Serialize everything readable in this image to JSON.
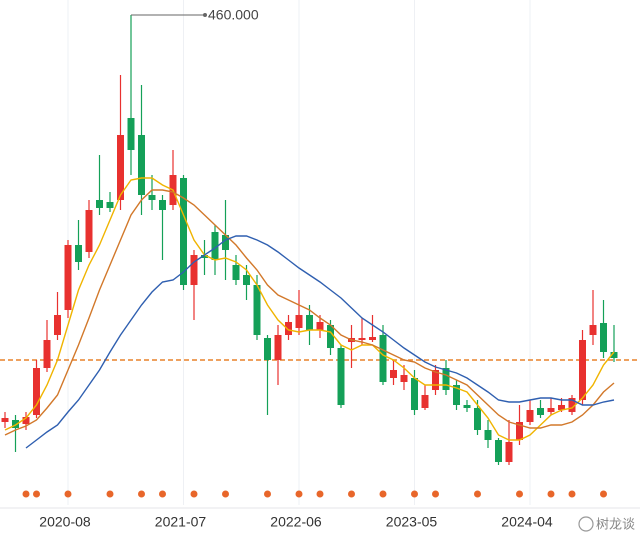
{
  "chart_data": {
    "type": "candlestick",
    "categories": [
      null,
      null,
      null,
      null,
      null,
      null,
      "2020-08",
      null,
      null,
      null,
      null,
      null,
      null,
      null,
      null,
      null,
      null,
      "2021-07",
      null,
      null,
      null,
      null,
      null,
      null,
      null,
      null,
      null,
      null,
      "2022-06",
      null,
      null,
      null,
      null,
      null,
      null,
      null,
      null,
      null,
      null,
      "2023-05",
      null,
      null,
      null,
      null,
      null,
      null,
      null,
      null,
      null,
      null,
      "2024-04",
      null,
      null,
      null,
      null,
      null,
      null,
      null,
      null
    ],
    "open": [
      53,
      55,
      51,
      60,
      107,
      140,
      165,
      230,
      223,
      275,
      273,
      275,
      357,
      340,
      280,
      275,
      270,
      297,
      190,
      220,
      243,
      240,
      210,
      200,
      190,
      137,
      115,
      140,
      147,
      160,
      145,
      150,
      127,
      133,
      135,
      135,
      140,
      97,
      93,
      97,
      67,
      85,
      107,
      90,
      70,
      67,
      45,
      35,
      13,
      35,
      53,
      67,
      63,
      65,
      63,
      75,
      140,
      152,
      123
    ],
    "high": [
      63,
      60,
      63,
      115,
      155,
      183,
      235,
      255,
      275,
      320,
      283,
      400,
      460,
      390,
      300,
      280,
      325,
      300,
      225,
      235,
      250,
      275,
      220,
      210,
      200,
      140,
      150,
      160,
      185,
      170,
      160,
      155,
      130,
      150,
      157,
      160,
      150,
      115,
      110,
      105,
      90,
      110,
      115,
      95,
      75,
      75,
      55,
      37,
      55,
      70,
      75,
      75,
      77,
      77,
      80,
      145,
      185,
      175,
      150
    ],
    "low": [
      47,
      23,
      45,
      57,
      103,
      135,
      157,
      205,
      217,
      260,
      263,
      265,
      300,
      260,
      265,
      215,
      265,
      185,
      155,
      200,
      200,
      195,
      190,
      175,
      135,
      60,
      90,
      135,
      140,
      130,
      137,
      120,
      67,
      107,
      130,
      133,
      90,
      90,
      85,
      60,
      65,
      80,
      80,
      65,
      63,
      40,
      27,
      10,
      10,
      30,
      50,
      57,
      60,
      63,
      60,
      70,
      130,
      117,
      113
    ],
    "close": [
      57,
      47,
      58,
      107,
      135,
      160,
      230,
      213,
      265,
      267,
      267,
      340,
      325,
      280,
      275,
      265,
      300,
      190,
      220,
      217,
      215,
      225,
      195,
      190,
      140,
      115,
      140,
      153,
      160,
      145,
      153,
      127,
      70,
      137,
      137,
      138,
      93,
      105,
      100,
      65,
      80,
      105,
      85,
      70,
      67,
      45,
      35,
      13,
      33,
      53,
      65,
      60,
      67,
      70,
      77,
      135,
      150,
      123,
      117
    ],
    "up_color": "#e8312f",
    "down_color": "#14a058",
    "series": [
      {
        "color": "#f0b400",
        "values": [
          45,
          50,
          57,
          70,
          90,
          115,
          150,
          185,
          210,
          230,
          255,
          280,
          295,
          297,
          297,
          290,
          285,
          260,
          235,
          220,
          215,
          217,
          213,
          205,
          190,
          170,
          155,
          145,
          143,
          145,
          145,
          143,
          130,
          125,
          130,
          130,
          120,
          115,
          107,
          97,
          90,
          90,
          90,
          87,
          83,
          70,
          57,
          40,
          35,
          35,
          40,
          50,
          60,
          65,
          67,
          77,
          90,
          110,
          123
        ]
      },
      {
        "color": "#d2782a",
        "values": [
          40,
          45,
          49,
          55,
          67,
          80,
          105,
          130,
          157,
          185,
          210,
          235,
          260,
          275,
          285,
          285,
          283,
          277,
          270,
          260,
          250,
          240,
          230,
          217,
          205,
          190,
          180,
          175,
          170,
          165,
          157,
          150,
          140,
          135,
          133,
          130,
          125,
          120,
          115,
          113,
          107,
          103,
          100,
          95,
          90,
          80,
          70,
          60,
          53,
          50,
          47,
          47,
          50,
          50,
          53,
          60,
          70,
          83,
          92
        ]
      },
      {
        "color": "#2f5fb0",
        "values": [
          null,
          null,
          27,
          35,
          43,
          50,
          63,
          75,
          90,
          105,
          123,
          140,
          155,
          170,
          183,
          193,
          195,
          203,
          213,
          220,
          227,
          235,
          239,
          239,
          235,
          230,
          223,
          215,
          207,
          200,
          193,
          185,
          177,
          167,
          157,
          150,
          143,
          135,
          127,
          120,
          113,
          108,
          105,
          102,
          97,
          90,
          83,
          75,
          73,
          73,
          75,
          77,
          77,
          75,
          75,
          70,
          70,
          73,
          75
        ]
      }
    ],
    "ylim": [
      0,
      475
    ],
    "grid": true,
    "max_label": {
      "value": 460,
      "label": "460.000"
    },
    "ref_line": {
      "value": 115,
      "color": "#e8822a"
    },
    "event_markers": [
      2,
      3,
      6,
      10,
      13,
      15,
      18,
      21,
      25,
      28,
      30,
      33,
      36,
      39,
      41,
      45,
      49,
      52,
      54,
      57
    ],
    "event_color": "#e8662a"
  },
  "watermark": "树龙谈"
}
